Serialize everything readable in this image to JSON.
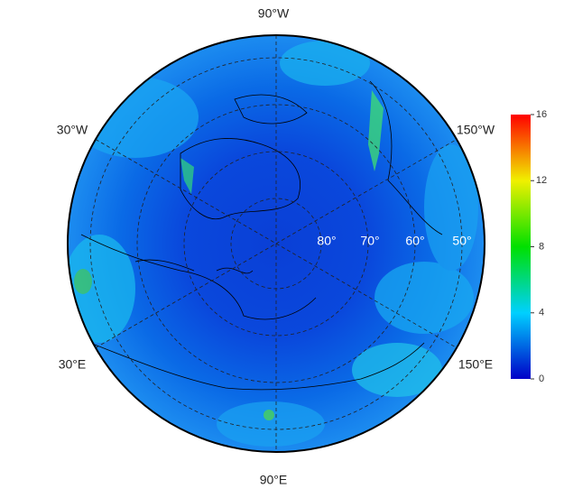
{
  "map": {
    "longitude_labels": [
      "90°W",
      "30°W",
      "150°W",
      "30°E",
      "150°E",
      "90°E"
    ],
    "latitude_labels": [
      "80°",
      "70°",
      "60°",
      "50°"
    ]
  },
  "colorbar": {
    "range": [
      0,
      16
    ],
    "ticks": [
      0,
      4,
      8,
      12,
      16
    ]
  }
}
